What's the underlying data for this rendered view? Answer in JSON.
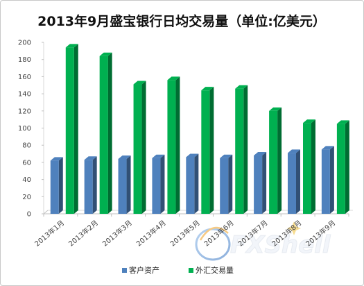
{
  "chart_data": {
    "type": "bar",
    "title": "2013年9月盛宝银行日均交易量（单位:亿美元）",
    "categories": [
      "2013年1月",
      "2013年2月",
      "2013年3月",
      "2013年4月",
      "2013年5月",
      "2013年6月",
      "2013年7月",
      "2013年8月",
      "2013年9月"
    ],
    "series": [
      {
        "name": "客户资产",
        "color": "#4f81bd",
        "values": [
          62,
          63,
          64,
          65,
          66,
          65,
          68,
          71,
          75
        ]
      },
      {
        "name": "外汇交易量",
        "color": "#00b050",
        "values": [
          194,
          184,
          151,
          156,
          144,
          146,
          120,
          106,
          105
        ]
      }
    ],
    "ylim": [
      0,
      200
    ],
    "yticks": [
      0,
      20,
      40,
      60,
      80,
      100,
      120,
      140,
      160,
      180,
      200
    ],
    "grid": false,
    "legend": "bottom",
    "style": "3d-column"
  },
  "watermark": {
    "text": "FXShell"
  }
}
